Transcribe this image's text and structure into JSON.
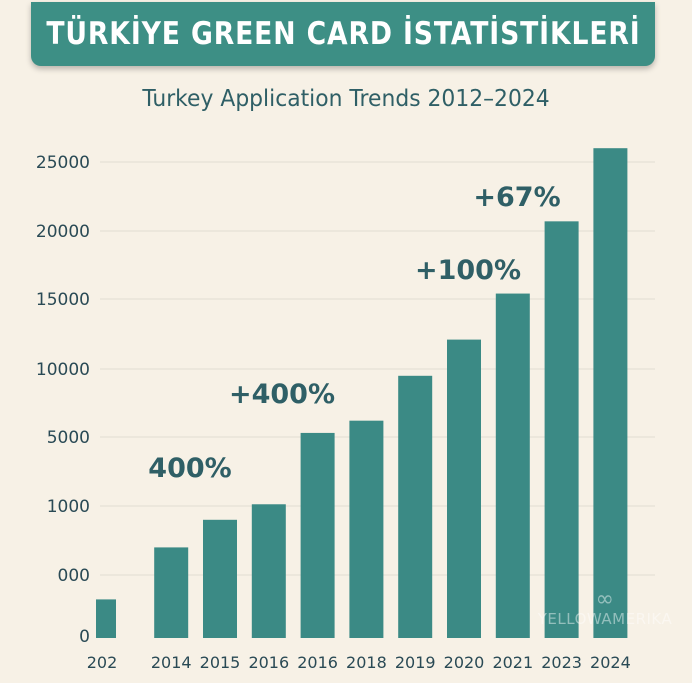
{
  "header": {
    "title": "TÜRKİYE GREEN CARD İSTATİSTİKLERİ"
  },
  "watermark": {
    "text": "YELLOWAMERIKA"
  },
  "colors": {
    "banner": "#3d8f85",
    "bar": "#3b8a85",
    "annotation": "#2f5f66",
    "background": "#f7f1e6"
  },
  "chart_data": {
    "type": "bar",
    "title": "Turkey Application Trends 2012–2024",
    "categories": [
      "202",
      "2014",
      "2015",
      "2016",
      "2016",
      "2018",
      "2019",
      "2020",
      "2021",
      "2023",
      "2024"
    ],
    "values": [
      300,
      700,
      900,
      1100,
      5300,
      6200,
      9500,
      12100,
      15400,
      20700,
      26000
    ],
    "yticks": [
      "0",
      "000",
      "1000",
      "5000",
      "10000",
      "15000",
      "20000",
      "25000"
    ],
    "axis_note": "y-axis is non-linear: ticks 0, 000, 1000 are spaced as 0–1000 steps, then 5000 to 25000 in 5000 steps",
    "annotations": [
      {
        "text": "400%",
        "category_index": 2
      },
      {
        "text": "+400%",
        "category_index": 4
      },
      {
        "text": "+100%",
        "category_index": 8
      },
      {
        "text": "+67%",
        "category_index": 9
      }
    ],
    "grid": true,
    "legend": "none"
  }
}
